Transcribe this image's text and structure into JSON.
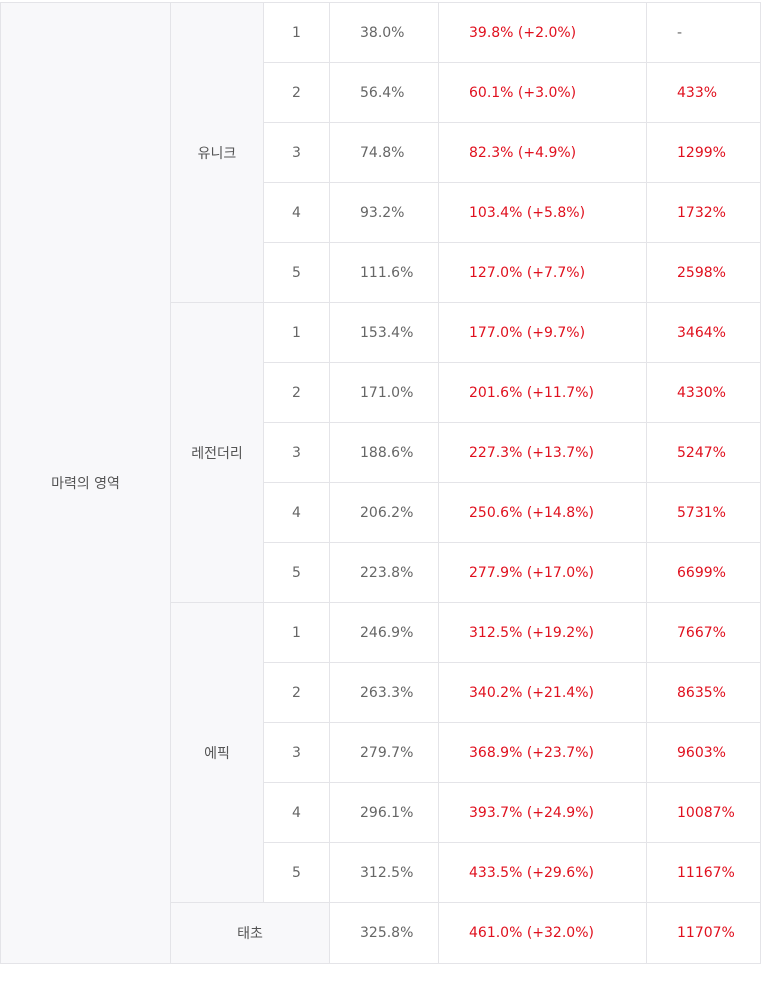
{
  "category": "마력의 영역",
  "groups": [
    {
      "name": "유니크",
      "rows": [
        {
          "level": "1",
          "base": "38.0%",
          "boosted": "39.8% (+2.0%)",
          "cost": "-"
        },
        {
          "level": "2",
          "base": "56.4%",
          "boosted": "60.1% (+3.0%)",
          "cost": "433%"
        },
        {
          "level": "3",
          "base": "74.8%",
          "boosted": "82.3% (+4.9%)",
          "cost": "1299%"
        },
        {
          "level": "4",
          "base": "93.2%",
          "boosted": "103.4% (+5.8%)",
          "cost": "1732%"
        },
        {
          "level": "5",
          "base": "111.6%",
          "boosted": "127.0% (+7.7%)",
          "cost": "2598%"
        }
      ]
    },
    {
      "name": "레전더리",
      "rows": [
        {
          "level": "1",
          "base": "153.4%",
          "boosted": "177.0% (+9.7%)",
          "cost": "3464%"
        },
        {
          "level": "2",
          "base": "171.0%",
          "boosted": "201.6% (+11.7%)",
          "cost": "4330%"
        },
        {
          "level": "3",
          "base": "188.6%",
          "boosted": "227.3% (+13.7%)",
          "cost": "5247%"
        },
        {
          "level": "4",
          "base": "206.2%",
          "boosted": "250.6% (+14.8%)",
          "cost": "5731%"
        },
        {
          "level": "5",
          "base": "223.8%",
          "boosted": "277.9% (+17.0%)",
          "cost": "6699%"
        }
      ]
    },
    {
      "name": "에픽",
      "rows": [
        {
          "level": "1",
          "base": "246.9%",
          "boosted": "312.5% (+19.2%)",
          "cost": "7667%"
        },
        {
          "level": "2",
          "base": "263.3%",
          "boosted": "340.2% (+21.4%)",
          "cost": "8635%"
        },
        {
          "level": "3",
          "base": "279.7%",
          "boosted": "368.9% (+23.7%)",
          "cost": "9603%"
        },
        {
          "level": "4",
          "base": "296.1%",
          "boosted": "393.7% (+24.9%)",
          "cost": "10087%"
        },
        {
          "level": "5",
          "base": "312.5%",
          "boosted": "433.5% (+29.6%)",
          "cost": "11167%"
        }
      ]
    }
  ],
  "final": {
    "name": "태초",
    "base": "325.8%",
    "boosted": "461.0% (+32.0%)",
    "cost": "11707%"
  },
  "colors": {
    "accent_red": "#e0101e",
    "header_bg": "#f8f8fa",
    "border": "#e4e4e8",
    "text_gray": "#666666"
  }
}
